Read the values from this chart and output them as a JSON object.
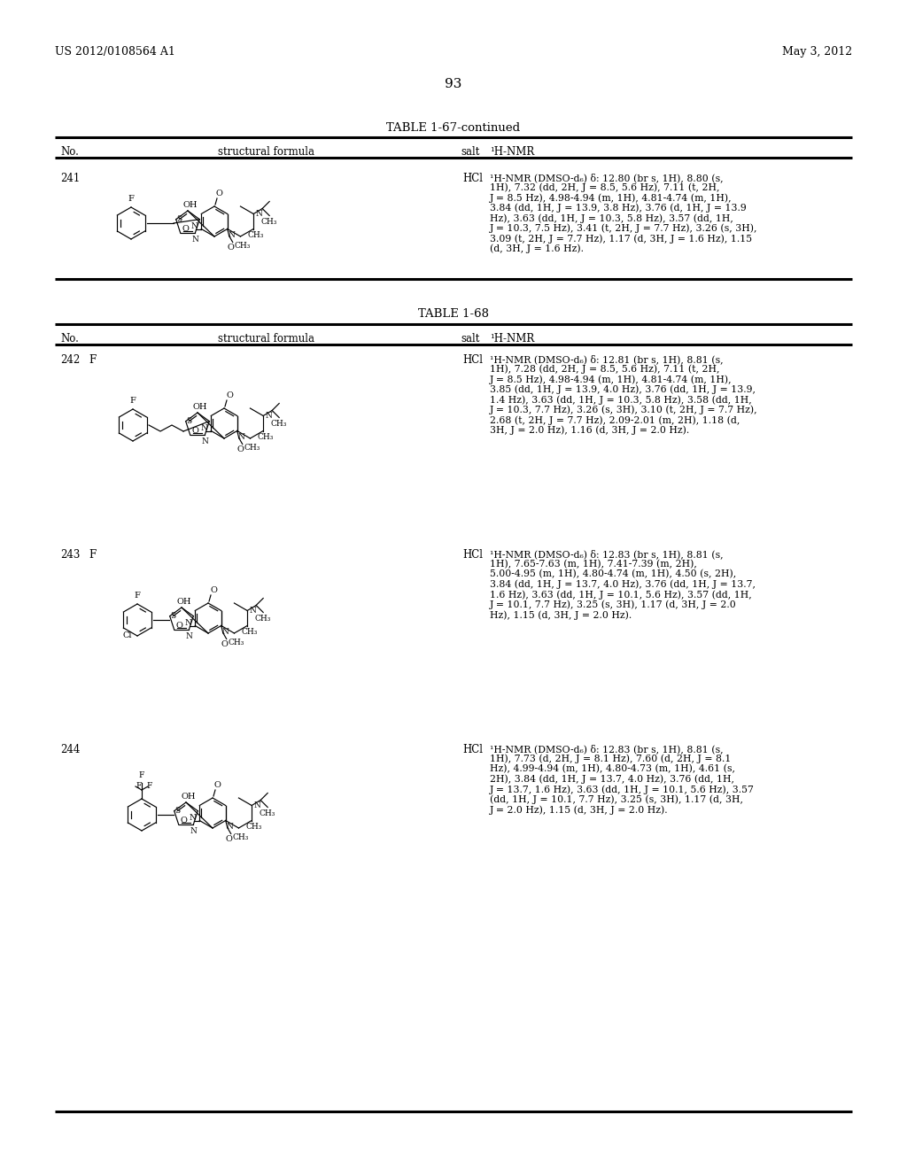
{
  "bg": "#ffffff",
  "header_left": "US 2012/0108564 A1",
  "header_right": "May 3, 2012",
  "page_num": "93",
  "table1_title": "TABLE 1-67-continued",
  "table2_title": "TABLE 1-68",
  "col_no": "No.",
  "col_sf": "structural formula",
  "col_salt": "salt",
  "col_nmr": "¹H-NMR",
  "entries": [
    {
      "no": "241",
      "salt": "HCl",
      "table": 1,
      "nmr_lines": [
        "¹H-NMR (DMSO-d₆) δ: 12.80 (br s, 1H), 8.80 (s,",
        "1H), 7.32 (dd, 2H, J = 8.5, 5.6 Hz), 7.11 (t, 2H,",
        "J = 8.5 Hz), 4.98-4.94 (m, 1H), 4.81-4.74 (m, 1H),",
        "3.84 (dd, 1H, J = 13.9, 3.8 Hz), 3.76 (d, 1H, J = 13.9",
        "Hz), 3.63 (dd, 1H, J = 10.3, 5.8 Hz), 3.57 (dd, 1H,",
        "J = 10.3, 7.5 Hz), 3.41 (t, 2H, J = 7.7 Hz), 3.26 (s, 3H),",
        "3.09 (t, 2H, J = 7.7 Hz), 1.17 (d, 3H, J = 1.6 Hz), 1.15",
        "(d, 3H, J = 1.6 Hz)."
      ]
    },
    {
      "no": "242",
      "salt": "HCl",
      "table": 2,
      "nmr_lines": [
        "¹H-NMR (DMSO-d₆) δ: 12.81 (br s, 1H), 8.81 (s,",
        "1H), 7.28 (dd, 2H, J = 8.5, 5.6 Hz), 7.11 (t, 2H,",
        "J = 8.5 Hz), 4.98-4.94 (m, 1H), 4.81-4.74 (m, 1H),",
        "3.85 (dd, 1H, J = 13.9, 4.0 Hz), 3.76 (dd, 1H, J = 13.9,",
        "1.4 Hz), 3.63 (dd, 1H, J = 10.3, 5.8 Hz), 3.58 (dd, 1H,",
        "J = 10.3, 7.7 Hz), 3.26 (s, 3H), 3.10 (t, 2H, J = 7.7 Hz),",
        "2.68 (t, 2H, J = 7.7 Hz), 2.09-2.01 (m, 2H), 1.18 (d,",
        "3H, J = 2.0 Hz), 1.16 (d, 3H, J = 2.0 Hz)."
      ]
    },
    {
      "no": "243",
      "salt": "HCl",
      "table": 2,
      "nmr_lines": [
        "¹H-NMR (DMSO-d₆) δ: 12.83 (br s, 1H), 8.81 (s,",
        "1H), 7.65-7.63 (m, 1H), 7.41-7.39 (m, 2H),",
        "5.00-4.95 (m, 1H), 4.80-4.74 (m, 1H), 4.50 (s, 2H),",
        "3.84 (dd, 1H, J = 13.7, 4.0 Hz), 3.76 (dd, 1H, J = 13.7,",
        "1.6 Hz), 3.63 (dd, 1H, J = 10.1, 5.6 Hz), 3.57 (dd, 1H,",
        "J = 10.1, 7.7 Hz), 3.25 (s, 3H), 1.17 (d, 3H, J = 2.0",
        "Hz), 1.15 (d, 3H, J = 2.0 Hz)."
      ]
    },
    {
      "no": "244",
      "salt": "HCl",
      "table": 2,
      "nmr_lines": [
        "¹H-NMR (DMSO-d₆) δ: 12.83 (br s, 1H), 8.81 (s,",
        "1H), 7.73 (d, 2H, J = 8.1 Hz), 7.60 (d, 2H, J = 8.1",
        "Hz), 4.99-4.94 (m, 1H), 4.80-4.73 (m, 1H), 4.61 (s,",
        "2H), 3.84 (dd, 1H, J = 13.7, 4.0 Hz), 3.76 (dd, 1H,",
        "J = 13.7, 1.6 Hz), 3.63 (dd, 1H, J = 10.1, 5.6 Hz), 3.57",
        "(dd, 1H, J = 10.1, 7.7 Hz), 3.25 (s, 3H), 1.17 (d, 3H,",
        "J = 2.0 Hz), 1.15 (d, 3H, J = 2.0 Hz)."
      ]
    }
  ]
}
